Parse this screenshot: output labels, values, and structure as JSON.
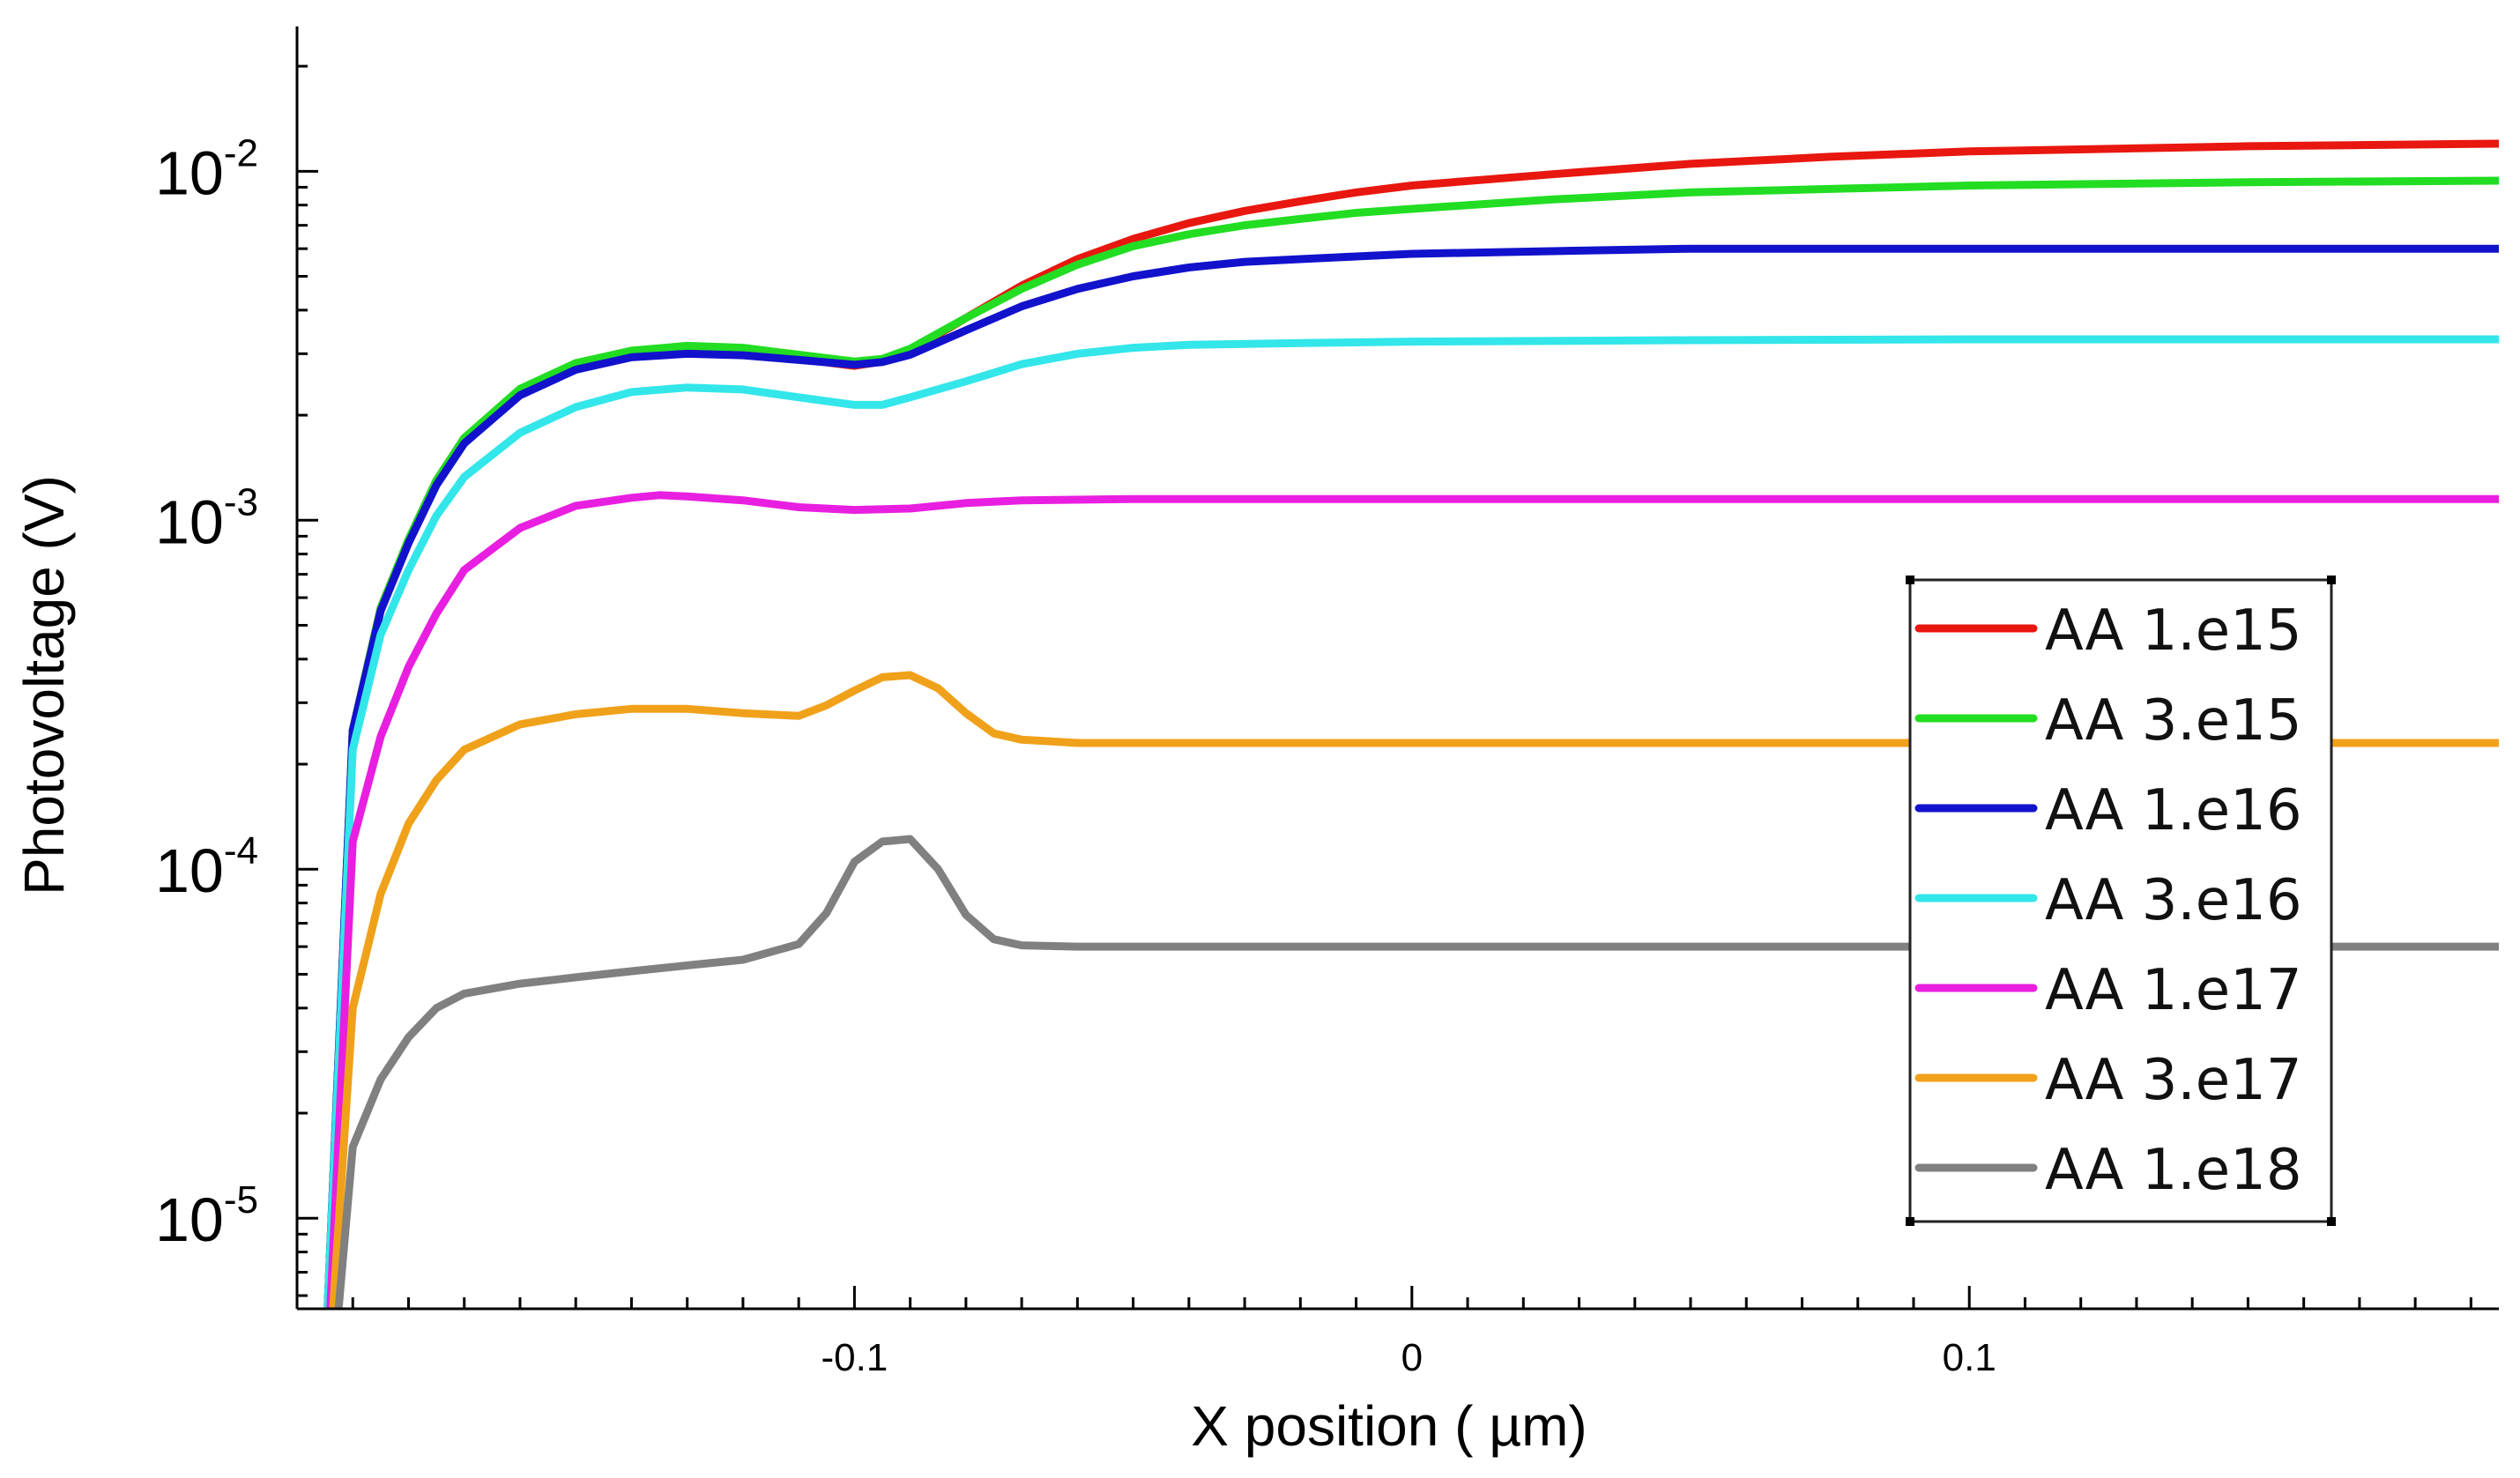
{
  "chart_data": {
    "type": "line",
    "xlabel": "X position ( µm)",
    "ylabel": "Photovoltage  (V)",
    "xlim": [
      -0.2,
      0.195
    ],
    "ylim": [
      5.5e-06,
      0.026
    ],
    "yscale": "log",
    "grid": false,
    "legend_position": "right",
    "x_ticks": [
      {
        "value": -0.1,
        "label": "-0.1"
      },
      {
        "value": 0,
        "label": "0"
      },
      {
        "value": 0.1,
        "label": "0.1"
      }
    ],
    "y_ticks": [
      {
        "value": 0.01,
        "base": "10",
        "exp": "-2"
      },
      {
        "value": 0.001,
        "base": "10",
        "exp": "-3"
      },
      {
        "value": 0.0001,
        "base": "10",
        "exp": "-4"
      },
      {
        "value": 1e-05,
        "base": "10",
        "exp": "-5"
      }
    ],
    "series": [
      {
        "name": "AA 1.e15",
        "color": "#e8170f",
        "points": [
          [
            -0.1945,
            5.6e-06
          ],
          [
            -0.19,
            0.00025
          ],
          [
            -0.185,
            0.00056
          ],
          [
            -0.18,
            0.00088
          ],
          [
            -0.175,
            0.0013
          ],
          [
            -0.17,
            0.00172
          ],
          [
            -0.16,
            0.00235
          ],
          [
            -0.15,
            0.00278
          ],
          [
            -0.14,
            0.003
          ],
          [
            -0.13,
            0.00308
          ],
          [
            -0.12,
            0.00302
          ],
          [
            -0.11,
            0.0029
          ],
          [
            -0.1,
            0.00277
          ],
          [
            -0.095,
            0.00285
          ],
          [
            -0.09,
            0.00305
          ],
          [
            -0.08,
            0.0038
          ],
          [
            -0.07,
            0.0047
          ],
          [
            -0.06,
            0.0056
          ],
          [
            -0.05,
            0.0064
          ],
          [
            -0.04,
            0.0071
          ],
          [
            -0.03,
            0.0077
          ],
          [
            -0.02,
            0.0082
          ],
          [
            -0.01,
            0.0087
          ],
          [
            0,
            0.0091
          ],
          [
            0.025,
            0.0098
          ],
          [
            0.05,
            0.0105
          ],
          [
            0.075,
            0.011
          ],
          [
            0.1,
            0.0114
          ],
          [
            0.15,
            0.0118
          ],
          [
            0.195,
            0.012
          ]
        ]
      },
      {
        "name": "AA 3.e15",
        "color": "#22dd22",
        "points": [
          [
            -0.1945,
            5.6e-06
          ],
          [
            -0.19,
            0.00025
          ],
          [
            -0.185,
            0.00056
          ],
          [
            -0.18,
            0.00088
          ],
          [
            -0.175,
            0.0013
          ],
          [
            -0.17,
            0.00172
          ],
          [
            -0.16,
            0.00238
          ],
          [
            -0.15,
            0.00282
          ],
          [
            -0.14,
            0.00306
          ],
          [
            -0.13,
            0.00316
          ],
          [
            -0.12,
            0.00312
          ],
          [
            -0.11,
            0.00298
          ],
          [
            -0.1,
            0.00285
          ],
          [
            -0.095,
            0.0029
          ],
          [
            -0.09,
            0.0031
          ],
          [
            -0.08,
            0.0038
          ],
          [
            -0.07,
            0.0046
          ],
          [
            -0.06,
            0.0054
          ],
          [
            -0.05,
            0.0061
          ],
          [
            -0.04,
            0.0066
          ],
          [
            -0.03,
            0.007
          ],
          [
            -0.02,
            0.0073
          ],
          [
            -0.01,
            0.0076
          ],
          [
            0,
            0.0078
          ],
          [
            0.025,
            0.0083
          ],
          [
            0.05,
            0.0087
          ],
          [
            0.075,
            0.0089
          ],
          [
            0.1,
            0.0091
          ],
          [
            0.15,
            0.0093
          ],
          [
            0.195,
            0.0094
          ]
        ]
      },
      {
        "name": "AA 1.e16",
        "color": "#1212cc",
        "points": [
          [
            -0.1945,
            5.6e-06
          ],
          [
            -0.19,
            0.00025
          ],
          [
            -0.185,
            0.00055
          ],
          [
            -0.18,
            0.00086
          ],
          [
            -0.175,
            0.00126
          ],
          [
            -0.17,
            0.00166
          ],
          [
            -0.16,
            0.00228
          ],
          [
            -0.15,
            0.0027
          ],
          [
            -0.14,
            0.00293
          ],
          [
            -0.13,
            0.003
          ],
          [
            -0.12,
            0.00297
          ],
          [
            -0.11,
            0.00288
          ],
          [
            -0.1,
            0.00279
          ],
          [
            -0.095,
            0.00284
          ],
          [
            -0.09,
            0.00298
          ],
          [
            -0.08,
            0.0035
          ],
          [
            -0.07,
            0.0041
          ],
          [
            -0.06,
            0.0046
          ],
          [
            -0.05,
            0.005
          ],
          [
            -0.04,
            0.0053
          ],
          [
            -0.03,
            0.0055
          ],
          [
            -0.02,
            0.0056
          ],
          [
            -0.01,
            0.0057
          ],
          [
            0,
            0.0058
          ],
          [
            0.025,
            0.0059
          ],
          [
            0.05,
            0.006
          ],
          [
            0.1,
            0.006
          ],
          [
            0.195,
            0.006
          ]
        ]
      },
      {
        "name": "AA 3.e16",
        "color": "#33e6ea",
        "points": [
          [
            -0.1945,
            5.6e-06
          ],
          [
            -0.19,
            0.00022
          ],
          [
            -0.185,
            0.00047
          ],
          [
            -0.18,
            0.00072
          ],
          [
            -0.175,
            0.00103
          ],
          [
            -0.17,
            0.00133
          ],
          [
            -0.16,
            0.00178
          ],
          [
            -0.15,
            0.00211
          ],
          [
            -0.14,
            0.00233
          ],
          [
            -0.13,
            0.0024
          ],
          [
            -0.12,
            0.00237
          ],
          [
            -0.11,
            0.00225
          ],
          [
            -0.1,
            0.00214
          ],
          [
            -0.095,
            0.00214
          ],
          [
            -0.09,
            0.00225
          ],
          [
            -0.08,
            0.0025
          ],
          [
            -0.07,
            0.0028
          ],
          [
            -0.06,
            0.003
          ],
          [
            -0.05,
            0.00312
          ],
          [
            -0.04,
            0.00318
          ],
          [
            -0.02,
            0.00322
          ],
          [
            0,
            0.00325
          ],
          [
            0.05,
            0.00328
          ],
          [
            0.1,
            0.0033
          ],
          [
            0.195,
            0.0033
          ]
        ]
      },
      {
        "name": "AA 1.e17",
        "color": "#e81fe0",
        "points": [
          [
            -0.194,
            5.6e-06
          ],
          [
            -0.19,
            0.00012
          ],
          [
            -0.185,
            0.00024
          ],
          [
            -0.18,
            0.00038
          ],
          [
            -0.175,
            0.00054
          ],
          [
            -0.17,
            0.00072
          ],
          [
            -0.16,
            0.00095
          ],
          [
            -0.15,
            0.0011
          ],
          [
            -0.14,
            0.00116
          ],
          [
            -0.135,
            0.00118
          ],
          [
            -0.13,
            0.00117
          ],
          [
            -0.12,
            0.00114
          ],
          [
            -0.11,
            0.00109
          ],
          [
            -0.1,
            0.00107
          ],
          [
            -0.09,
            0.00108
          ],
          [
            -0.08,
            0.00112
          ],
          [
            -0.07,
            0.00114
          ],
          [
            -0.05,
            0.00115
          ],
          [
            0,
            0.00115
          ],
          [
            0.1,
            0.00115
          ],
          [
            0.195,
            0.00115
          ]
        ]
      },
      {
        "name": "AA 3.e17",
        "color": "#f0a11a",
        "points": [
          [
            -0.1935,
            5.6e-06
          ],
          [
            -0.19,
            4e-05
          ],
          [
            -0.185,
            8.5e-05
          ],
          [
            -0.18,
            0.000135
          ],
          [
            -0.175,
            0.00018
          ],
          [
            -0.17,
            0.00022
          ],
          [
            -0.16,
            0.00026
          ],
          [
            -0.15,
            0.000278
          ],
          [
            -0.14,
            0.000288
          ],
          [
            -0.13,
            0.000288
          ],
          [
            -0.12,
            0.00028
          ],
          [
            -0.11,
            0.000275
          ],
          [
            -0.105,
            0.000295
          ],
          [
            -0.1,
            0.000325
          ],
          [
            -0.095,
            0.000355
          ],
          [
            -0.09,
            0.00036
          ],
          [
            -0.085,
            0.00033
          ],
          [
            -0.08,
            0.00028
          ],
          [
            -0.075,
            0.000245
          ],
          [
            -0.07,
            0.000235
          ],
          [
            -0.06,
            0.00023
          ],
          [
            0,
            0.00023
          ],
          [
            0.1,
            0.00023
          ],
          [
            0.195,
            0.00023
          ]
        ]
      },
      {
        "name": "AA 1.e18",
        "color": "#808080",
        "points": [
          [
            -0.1925,
            5.6e-06
          ],
          [
            -0.19,
            1.6e-05
          ],
          [
            -0.185,
            2.5e-05
          ],
          [
            -0.18,
            3.3e-05
          ],
          [
            -0.175,
            4e-05
          ],
          [
            -0.17,
            4.4e-05
          ],
          [
            -0.16,
            4.7e-05
          ],
          [
            -0.15,
            4.9e-05
          ],
          [
            -0.14,
            5.1e-05
          ],
          [
            -0.13,
            5.3e-05
          ],
          [
            -0.12,
            5.5e-05
          ],
          [
            -0.11,
            6.1e-05
          ],
          [
            -0.105,
            7.5e-05
          ],
          [
            -0.1,
            0.000105
          ],
          [
            -0.095,
            0.00012
          ],
          [
            -0.09,
            0.000122
          ],
          [
            -0.085,
            0.0001
          ],
          [
            -0.08,
            7.4e-05
          ],
          [
            -0.075,
            6.3e-05
          ],
          [
            -0.07,
            6.05e-05
          ],
          [
            -0.06,
            6e-05
          ],
          [
            0,
            6e-05
          ],
          [
            0.1,
            6e-05
          ],
          [
            0.195,
            6e-05
          ]
        ]
      }
    ]
  }
}
